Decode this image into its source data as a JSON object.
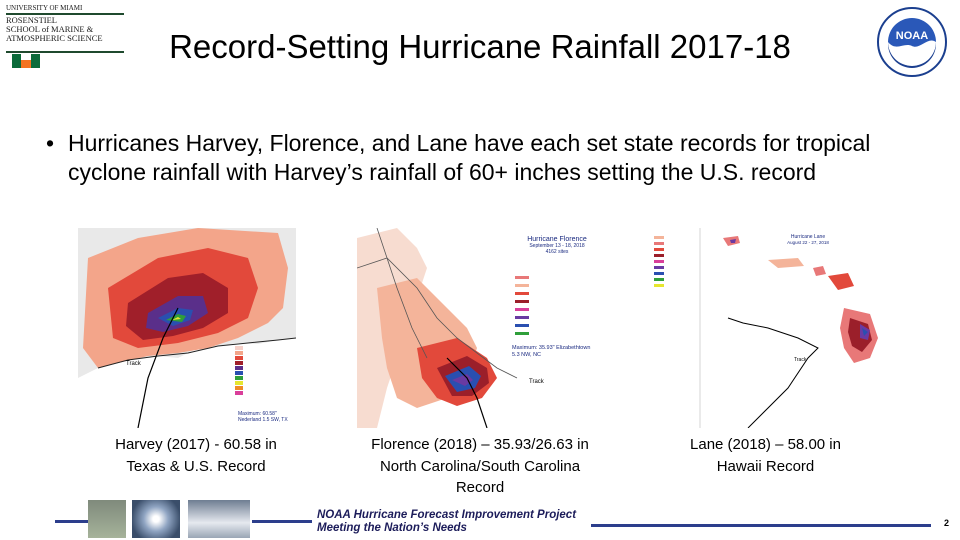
{
  "header": {
    "logo_lines": [
      "UNIVERSITY OF MIAMI",
      "ROSENSTIEL",
      "SCHOOL of MARINE &",
      "ATMOSPHERIC SCIENCE"
    ],
    "title": "Record-Setting Hurricane Rainfall 2017-18",
    "noaa_text": "NOAA"
  },
  "bullet": {
    "marker": "•",
    "text": "Hurricanes Harvey, Florence, and Lane have each set state records for tropical cyclone rainfall with Harvey’s rainfall of 60+ inches setting the U.S. record"
  },
  "maps": [
    {
      "caption": "Harvey (2017) - 60.58 in Texas & U.S. Record",
      "legend_text": "Maximum: 60.58\" Nederland 1.5 SW, TX",
      "track_label": "Track"
    },
    {
      "caption": "Florence (2018) – 35.93/26.63 in North Carolina/South Carolina Record",
      "legend_title": "Hurricane Florence",
      "legend_sub": "September 13 - 18, 2018",
      "legend_count": "4162 sites",
      "legend_text": "Maximum: 35.93\" Elizabethtown 5.3 NW, NC",
      "track_label": "Track"
    },
    {
      "caption": "Lane (2018) – 58.00 in Hawaii Record",
      "legend_title": "Hurricane Lane",
      "legend_sub": "August 22 - 27, 2018",
      "track_label": "Track"
    }
  ],
  "footer": {
    "project": "NOAA Hurricane Forecast Improvement Project",
    "tagline": "Meeting the Nation’s Needs",
    "page_number": "2"
  },
  "colors": {
    "footer_line": "#2c3e8c",
    "um_green": "#0b6b3a",
    "um_orange": "#f47321"
  }
}
